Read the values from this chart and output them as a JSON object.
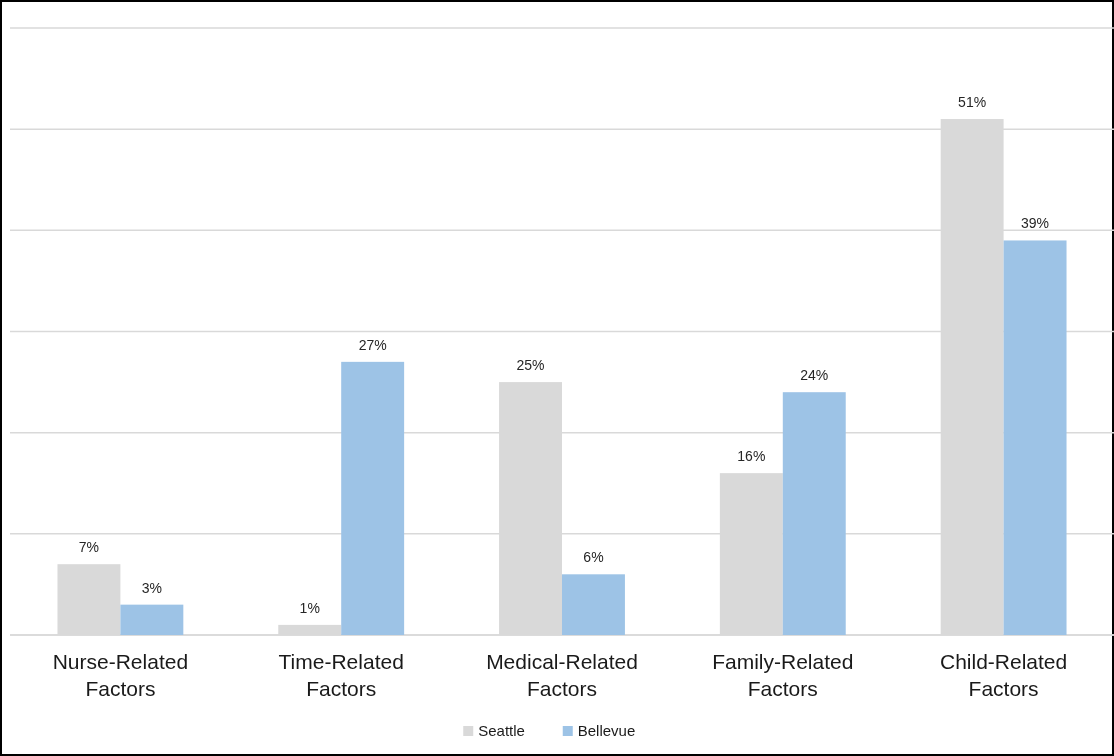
{
  "chart_data": {
    "type": "bar",
    "categories": [
      "Nurse-Related Factors",
      "Time-Related Factors",
      "Medical-Related Factors",
      "Family-Related Factors",
      "Child-Related Factors"
    ],
    "series": [
      {
        "name": "Seattle",
        "color": "#d9d9d9",
        "values": [
          7,
          1,
          25,
          16,
          51
        ],
        "value_labels": [
          "7%",
          "1%",
          "25%",
          "16%",
          "51%"
        ]
      },
      {
        "name": "Bellevue",
        "color": "#9dc3e6",
        "values": [
          3,
          27,
          6,
          24,
          39
        ],
        "value_labels": [
          "3%",
          "27%",
          "6%",
          "24%",
          "39%"
        ]
      }
    ],
    "ylim": [
      0,
      60
    ],
    "yticks": [
      {
        "value": 0,
        "label": null
      },
      {
        "value": 10,
        "label": null
      },
      {
        "value": 20,
        "label": null
      },
      {
        "value": 30,
        "label": null
      },
      {
        "value": 40,
        "label": null
      },
      {
        "value": 50,
        "label": null
      },
      {
        "value": 60,
        "label": null
      }
    ],
    "grid": "y",
    "legend": "bottom",
    "tick_labels": "x"
  }
}
